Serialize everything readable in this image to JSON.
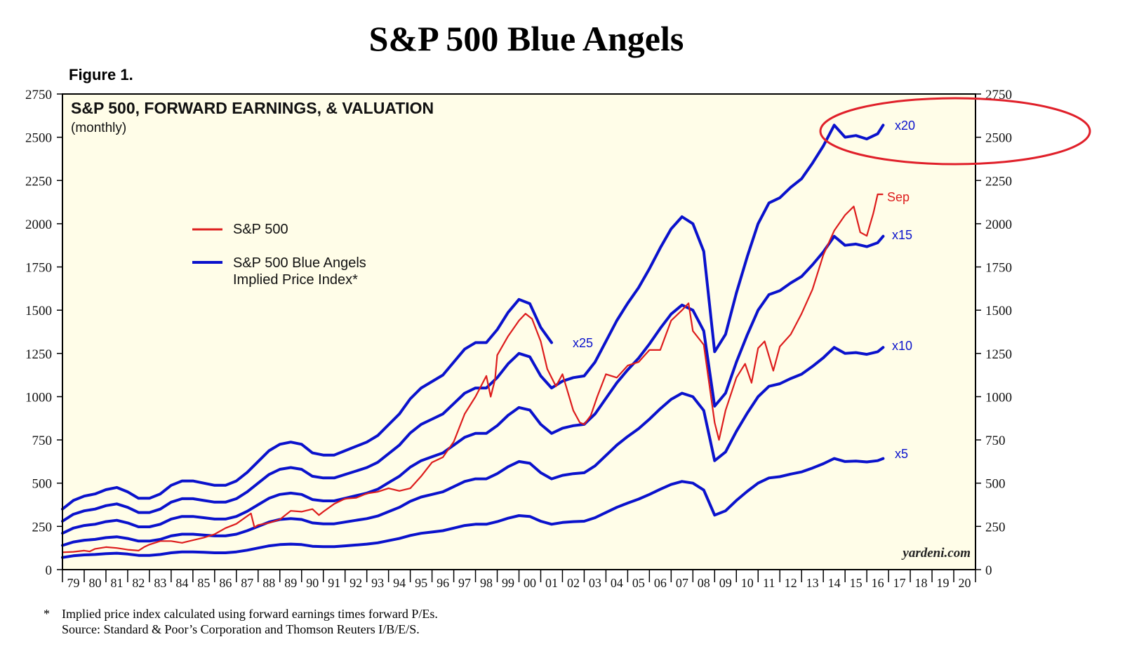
{
  "header": {
    "title": "S&P 500 Blue Angels",
    "figure_label": "Figure 1."
  },
  "footnote": {
    "star": "*",
    "line1": "Implied price index calculated using forward earnings times forward P/Es.",
    "line2": "Source: Standard & Poor’s Corporation and Thomson Reuters I/B/E/S."
  },
  "colors": {
    "background": "#FFFDE8",
    "price": "#DD1C1C",
    "implied": "#0A12CC",
    "highlight": "#E0202A"
  },
  "chart_data": {
    "type": "line",
    "title": "S&P 500, FORWARD EARNINGS, & VALUATION",
    "subtitle": "(monthly)",
    "watermark": "yardeni.com",
    "ylim": [
      0,
      2750
    ],
    "yticks": [
      "2750",
      "2500",
      "2250",
      "2000",
      "1750",
      "1500",
      "1250",
      "1000",
      "750",
      "500",
      "250",
      "0"
    ],
    "xlim": [
      1979,
      2021
    ],
    "xtick_labels": [
      "79",
      "80",
      "81",
      "82",
      "83",
      "84",
      "85",
      "86",
      "87",
      "88",
      "89",
      "90",
      "91",
      "92",
      "93",
      "94",
      "95",
      "96",
      "97",
      "98",
      "99",
      "00",
      "01",
      "02",
      "03",
      "04",
      "05",
      "06",
      "07",
      "08",
      "09",
      "10",
      "11",
      "12",
      "13",
      "14",
      "15",
      "16",
      "17",
      "18",
      "19",
      "20"
    ],
    "legend": [
      {
        "label": "S&P 500",
        "color": "#DD1C1C"
      },
      {
        "label": "S&P 500 Blue Angels",
        "label2": "Implied Price Index*",
        "color": "#0A12CC"
      }
    ],
    "annotations": {
      "sep": "Sep",
      "x25": "x25",
      "x20": "x20",
      "x15": "x15",
      "x10": "x10",
      "x5": "x5"
    },
    "forward_earnings": {
      "x": [
        1979.0,
        1979.5,
        1980.0,
        1980.5,
        1981.0,
        1981.5,
        1982.0,
        1982.5,
        1983.0,
        1983.5,
        1984.0,
        1984.5,
        1985.0,
        1985.5,
        1986.0,
        1986.5,
        1987.0,
        1987.5,
        1988.0,
        1988.5,
        1989.0,
        1989.5,
        1990.0,
        1990.5,
        1991.0,
        1991.5,
        1992.0,
        1992.5,
        1993.0,
        1993.5,
        1994.0,
        1994.5,
        1995.0,
        1995.5,
        1996.0,
        1996.5,
        1997.0,
        1997.5,
        1998.0,
        1998.5,
        1999.0,
        1999.5,
        2000.0,
        2000.5,
        2001.0,
        2001.5,
        2002.0,
        2002.5,
        2003.0,
        2003.5,
        2004.0,
        2004.5,
        2005.0,
        2005.5,
        2006.0,
        2006.5,
        2007.0,
        2007.5,
        2008.0,
        2008.5,
        2009.0,
        2009.5,
        2010.0,
        2010.5,
        2011.0,
        2011.5,
        2012.0,
        2012.5,
        2013.0,
        2013.5,
        2014.0,
        2014.5,
        2015.0,
        2015.5,
        2016.0,
        2016.5,
        2016.75
      ],
      "y": [
        14.0,
        16.0,
        17.0,
        17.5,
        18.5,
        19.0,
        18.0,
        16.5,
        16.5,
        17.5,
        19.5,
        20.5,
        20.5,
        20.0,
        19.5,
        19.5,
        20.5,
        22.5,
        25.0,
        27.5,
        29.0,
        29.5,
        29.0,
        27.0,
        26.5,
        26.5,
        27.5,
        28.5,
        29.5,
        31.0,
        33.5,
        36.0,
        39.5,
        42.0,
        43.5,
        45.0,
        48.0,
        51.0,
        52.5,
        52.5,
        55.5,
        59.5,
        62.5,
        61.5,
        56.0,
        52.5,
        54.5,
        55.5,
        56.0,
        60.0,
        66.0,
        72.0,
        77.0,
        81.5,
        87.0,
        93.0,
        98.5,
        102.0,
        100.0,
        92.0,
        63.0,
        68.0,
        80.0,
        90.5,
        100.0,
        106.0,
        107.5,
        110.5,
        113.0,
        117.5,
        122.5,
        128.5,
        125.0,
        125.5,
        124.5,
        126.0,
        128.5
      ]
    },
    "price": {
      "x": [
        1979.0,
        1979.5,
        1980.0,
        1980.25,
        1980.5,
        1981.0,
        1981.5,
        1982.0,
        1982.5,
        1982.75,
        1983.0,
        1983.5,
        1984.0,
        1984.5,
        1985.0,
        1985.5,
        1986.0,
        1986.5,
        1987.0,
        1987.67,
        1987.83,
        1988.0,
        1988.5,
        1989.0,
        1989.5,
        1990.0,
        1990.5,
        1990.8,
        1991.0,
        1991.5,
        1992.0,
        1992.5,
        1993.0,
        1993.5,
        1994.0,
        1994.5,
        1995.0,
        1995.5,
        1996.0,
        1996.5,
        1997.0,
        1997.5,
        1998.0,
        1998.5,
        1998.7,
        1998.9,
        1999.0,
        1999.5,
        2000.0,
        2000.3,
        2000.6,
        2001.0,
        2001.3,
        2001.7,
        2002.0,
        2002.5,
        2002.8,
        2003.0,
        2003.3,
        2003.6,
        2004.0,
        2004.5,
        2005.0,
        2005.5,
        2006.0,
        2006.5,
        2007.0,
        2007.5,
        2007.8,
        2008.0,
        2008.5,
        2008.9,
        2009.0,
        2009.2,
        2009.5,
        2010.0,
        2010.4,
        2010.7,
        2011.0,
        2011.3,
        2011.7,
        2012.0,
        2012.5,
        2013.0,
        2013.5,
        2014.0,
        2014.5,
        2015.0,
        2015.4,
        2015.7,
        2016.0,
        2016.3,
        2016.5,
        2016.75
      ],
      "y": [
        100,
        103,
        110,
        105,
        120,
        130,
        125,
        115,
        110,
        130,
        145,
        165,
        165,
        155,
        170,
        185,
        205,
        240,
        265,
        325,
        245,
        258,
        270,
        290,
        340,
        335,
        350,
        315,
        335,
        380,
        410,
        415,
        440,
        450,
        470,
        455,
        470,
        540,
        620,
        650,
        740,
        900,
        1000,
        1120,
        1000,
        1100,
        1240,
        1350,
        1440,
        1480,
        1450,
        1320,
        1160,
        1060,
        1130,
        920,
        850,
        840,
        890,
        1000,
        1130,
        1110,
        1180,
        1200,
        1270,
        1270,
        1440,
        1500,
        1540,
        1380,
        1300,
        940,
        850,
        750,
        920,
        1110,
        1190,
        1080,
        1280,
        1320,
        1150,
        1290,
        1360,
        1480,
        1620,
        1820,
        1960,
        2050,
        2100,
        1950,
        1930,
        2060,
        2170,
        2170
      ]
    }
  }
}
